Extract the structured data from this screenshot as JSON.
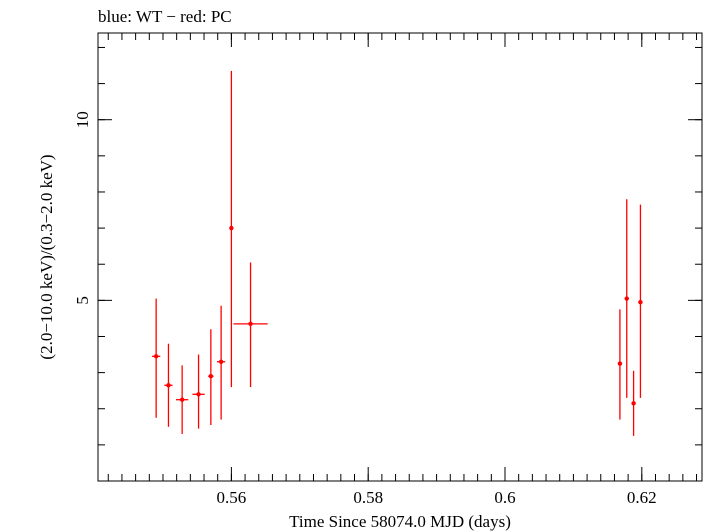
{
  "chart_data": {
    "type": "scatter",
    "title": "blue: WT − red: PC",
    "xlabel": "Time Since 58074.0 MJD (days)",
    "ylabel": "(2.0−10.0 keV)/(0.3−2.0 keV)",
    "xlim": [
      0.5405,
      0.6288
    ],
    "ylim": [
      0.0,
      12.4
    ],
    "x_ticks": [
      {
        "value": 0.56,
        "label": "0.56"
      },
      {
        "value": 0.58,
        "label": "0.58"
      },
      {
        "value": 0.6,
        "label": "0.6"
      },
      {
        "value": 0.62,
        "label": "0.62"
      }
    ],
    "x_minor_step": 0.002,
    "y_ticks": [
      {
        "value": 5,
        "label": "5"
      },
      {
        "value": 10,
        "label": "10"
      }
    ],
    "y_minor_step": 1,
    "grid": false,
    "series": [
      {
        "name": "PC",
        "color": "#ff0000",
        "points": [
          {
            "x": 0.549,
            "xerr": 0.0006,
            "y": 3.45,
            "ylo": 1.75,
            "yhi": 5.05
          },
          {
            "x": 0.5508,
            "xerr": 0.0006,
            "y": 2.65,
            "ylo": 1.5,
            "yhi": 3.8
          },
          {
            "x": 0.5528,
            "xerr": 0.0009,
            "y": 2.25,
            "ylo": 1.3,
            "yhi": 3.2
          },
          {
            "x": 0.5552,
            "xerr": 0.0009,
            "y": 2.4,
            "ylo": 1.45,
            "yhi": 3.5
          },
          {
            "x": 0.557,
            "xerr": 0.0004,
            "y": 2.9,
            "ylo": 1.55,
            "yhi": 4.2
          },
          {
            "x": 0.5585,
            "xerr": 0.0006,
            "y": 3.3,
            "ylo": 1.7,
            "yhi": 4.85
          },
          {
            "x": 0.56,
            "xerr": 0.0002,
            "y": 7.0,
            "ylo": 2.6,
            "yhi": 11.35
          },
          {
            "x": 0.5628,
            "xerr": 0.0025,
            "y": 4.35,
            "ylo": 2.6,
            "yhi": 6.05
          },
          {
            "x": 0.6168,
            "xerr": 0.0003,
            "y": 3.25,
            "ylo": 1.7,
            "yhi": 4.75
          },
          {
            "x": 0.6178,
            "xerr": 0.0003,
            "y": 5.05,
            "ylo": 2.3,
            "yhi": 7.8
          },
          {
            "x": 0.6188,
            "xerr": 0.0003,
            "y": 2.15,
            "ylo": 1.25,
            "yhi": 3.05
          },
          {
            "x": 0.6198,
            "xerr": 0.0003,
            "y": 4.95,
            "ylo": 2.3,
            "yhi": 7.65
          }
        ]
      }
    ]
  }
}
